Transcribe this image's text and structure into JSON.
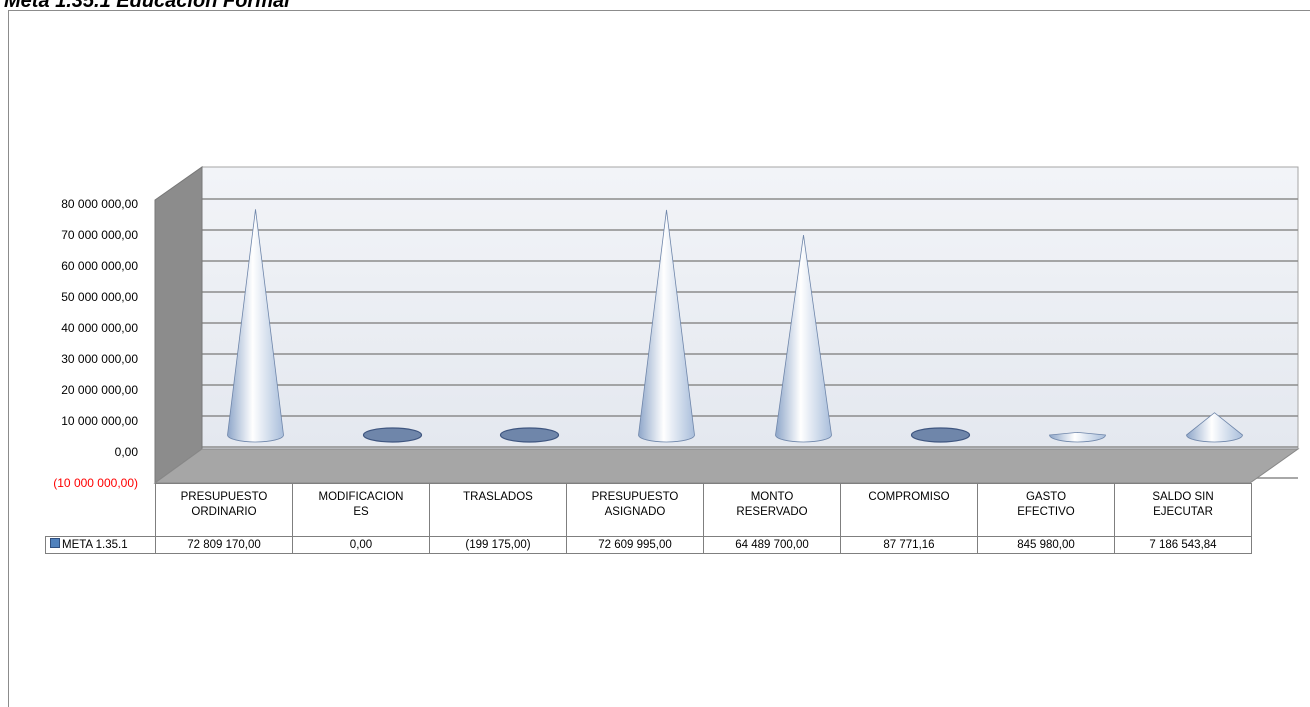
{
  "chart_data": {
    "type": "cone",
    "title": "Meta 1.35.1 Educación Formal",
    "categories": [
      "PRESUPUESTO ORDINARIO",
      "MODIFICACIONES",
      "TRASLADOS",
      "PRESUPUESTO ASIGNADO",
      "MONTO RESERVADO",
      "COMPROMISO",
      "GASTO EFECTIVO",
      "SALDO SIN EJECUTAR"
    ],
    "series": [
      {
        "name": "META 1.35.1",
        "color": "#4f81bd",
        "values": [
          72809170,
          0,
          -199175,
          72609995,
          64489700,
          87771.16,
          845980,
          7186543.84
        ],
        "value_labels": [
          "72 809 170,00",
          "0,00",
          "(199 175,00)",
          "72 609 995,00",
          "64 489 700,00",
          "87 771,16",
          "845 980,00",
          "7 186 543,84"
        ]
      }
    ],
    "ylim": [
      -10000000,
      80000000
    ],
    "yticks": [
      {
        "value": 80000000,
        "label": "80 000 000,00"
      },
      {
        "value": 70000000,
        "label": "70 000 000,00"
      },
      {
        "value": 60000000,
        "label": "60 000 000,00"
      },
      {
        "value": 50000000,
        "label": "50 000 000,00"
      },
      {
        "value": 40000000,
        "label": "40 000 000,00"
      },
      {
        "value": 30000000,
        "label": "30 000 000,00"
      },
      {
        "value": 20000000,
        "label": "20 000 000,00"
      },
      {
        "value": 10000000,
        "label": "10 000 000,00"
      },
      {
        "value": 0,
        "label": "0,00"
      },
      {
        "value": -10000000,
        "label": "(10 000 000,00)"
      }
    ],
    "negative_tick_color": "#ff0000",
    "grid": true
  }
}
